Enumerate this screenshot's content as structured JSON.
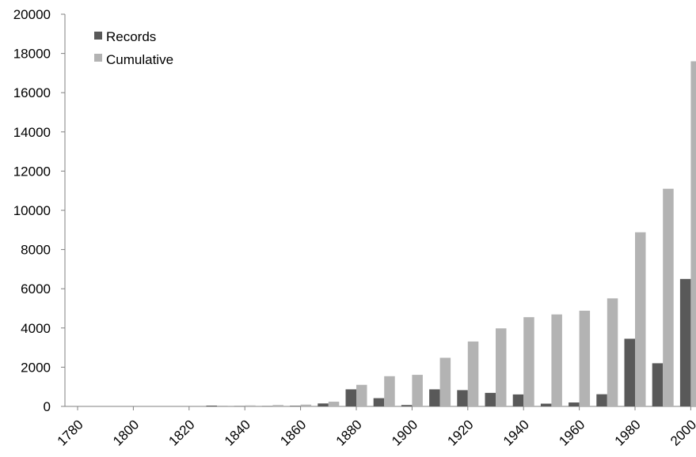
{
  "chart_data": {
    "type": "bar",
    "title": "",
    "xlabel": "",
    "ylabel": "",
    "ylim": [
      0,
      20000
    ],
    "y_ticks": [
      0,
      2000,
      4000,
      6000,
      8000,
      10000,
      12000,
      14000,
      16000,
      18000,
      20000
    ],
    "x_tick_labels": [
      "1780",
      "1800",
      "1820",
      "1840",
      "1860",
      "1880",
      "1900",
      "1920",
      "1940",
      "1960",
      "1980",
      "2000"
    ],
    "categories": [
      "1780",
      "1790",
      "1800",
      "1810",
      "1820",
      "1830",
      "1840",
      "1850",
      "1860",
      "1870",
      "1880",
      "1890",
      "1900",
      "1910",
      "1920",
      "1930",
      "1940",
      "1950",
      "1960",
      "1970",
      "1980",
      "1990",
      "2000"
    ],
    "series": [
      {
        "name": "Records",
        "color": "#595959",
        "values": [
          0,
          0,
          0,
          0,
          0,
          40,
          20,
          20,
          30,
          150,
          870,
          420,
          70,
          870,
          830,
          690,
          610,
          140,
          200,
          620,
          3450,
          2200,
          6500
        ]
      },
      {
        "name": "Cumulative",
        "color": "#b3b3b3",
        "values": [
          0,
          0,
          0,
          0,
          0,
          40,
          50,
          70,
          90,
          240,
          1100,
          1540,
          1610,
          2480,
          3310,
          3980,
          4550,
          4690,
          4880,
          5510,
          8880,
          11100,
          17600
        ]
      }
    ],
    "legend": {
      "position": "top-left",
      "entries": [
        "Records",
        "Cumulative"
      ]
    },
    "grid": false
  }
}
